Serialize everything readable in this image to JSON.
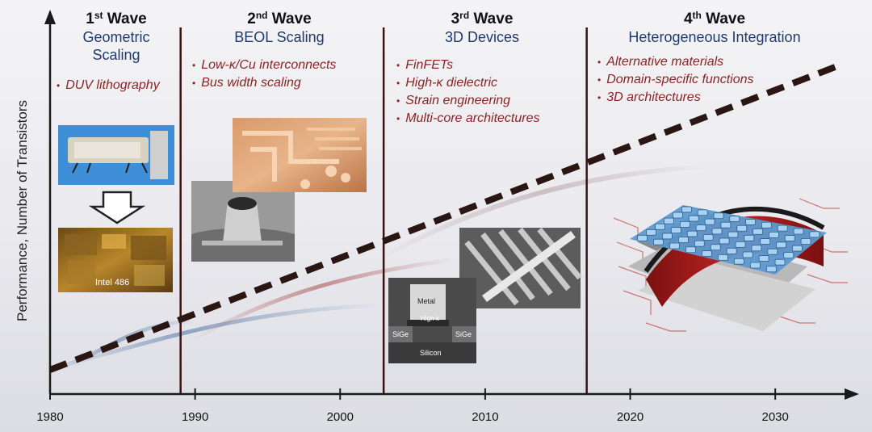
{
  "axes": {
    "ylabel": "Performance, Number of Transistors",
    "xticks": [
      "1980",
      "1990",
      "2000",
      "2010",
      "2020",
      "2030"
    ]
  },
  "waves": [
    {
      "ordinal": "1",
      "suffix": "st",
      "word": "Wave",
      "subtitle_lines": [
        "Geometric",
        "Scaling"
      ],
      "bullets": [
        "DUV lithography"
      ]
    },
    {
      "ordinal": "2",
      "suffix": "nd",
      "word": "Wave",
      "subtitle_lines": [
        "BEOL Scaling"
      ],
      "bullets": [
        "Low-κ/Cu interconnects",
        "Bus width scaling"
      ]
    },
    {
      "ordinal": "3",
      "suffix": "rd",
      "word": "Wave",
      "subtitle_lines": [
        "3D Devices"
      ],
      "bullets": [
        "FinFETs",
        "High-κ dielectric",
        "Strain engineering",
        "Multi-core architectures"
      ]
    },
    {
      "ordinal": "4",
      "suffix": "th",
      "word": "Wave",
      "subtitle_lines": [
        "Heterogeneous Integration"
      ],
      "bullets": [
        "Alternative materials",
        "Domain-specific functions",
        "3D architectures"
      ]
    }
  ],
  "wave_boundaries_year": [
    1989,
    2003,
    2017
  ],
  "images": {
    "chip_label": "Intel 486",
    "device_labels": [
      "Metal",
      "High-k",
      "SiGe",
      "SiGe",
      "Silicon"
    ]
  },
  "chart_data": {
    "type": "line",
    "xlim": [
      1980,
      2035
    ],
    "x_ticks": [
      1980,
      1990,
      2000,
      2010,
      2020,
      2030
    ],
    "ylabel": "Performance, Number of Transistors",
    "series": [
      {
        "style": "dashed-trend",
        "x": [
          1980,
          2035
        ],
        "y": [
          0,
          1
        ]
      }
    ]
  },
  "colors": {
    "trend": "#2a1612",
    "axis": "#1a1a1a",
    "divider": "#3a1212",
    "bullet": "#8a2424",
    "subtitle": "#1f3a6b"
  }
}
